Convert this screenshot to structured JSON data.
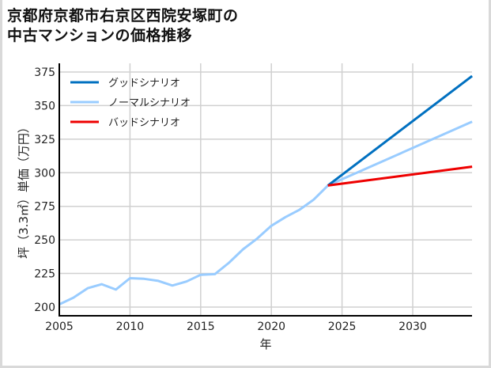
{
  "title_line1": "京都府京都市右京区西院安塚町の",
  "title_line2": "中古マンションの価格推移",
  "chart_data": {
    "type": "line",
    "title": "京都府京都市右京区西院安塚町の中古マンションの価格推移",
    "xlabel": "年",
    "ylabel": "坪（3.3㎡）単価（万円）",
    "xlim": [
      2005,
      2034.2
    ],
    "ylim": [
      197,
      377
    ],
    "xticks": [
      2005,
      2010,
      2015,
      2020,
      2025,
      2030
    ],
    "yticks": [
      200,
      225,
      250,
      275,
      300,
      325,
      350,
      375
    ],
    "grid": true,
    "legend_position": "upper left",
    "series": [
      {
        "name": "グッドシナリオ",
        "color": "#0070c0",
        "x": [
          2024,
          2034.2
        ],
        "values": [
          290.5,
          372
        ]
      },
      {
        "name": "ノーマルシナリオ",
        "color": "#99ccff",
        "x": [
          2005,
          2006,
          2007,
          2008,
          2009,
          2010,
          2011,
          2012,
          2013,
          2014,
          2015,
          2016,
          2017,
          2018,
          2019,
          2020,
          2021,
          2022,
          2023,
          2024,
          2034.2
        ],
        "values": [
          202,
          207,
          214,
          217,
          213,
          221.5,
          221,
          219.5,
          216,
          219,
          224,
          224.5,
          233,
          243,
          251,
          260.5,
          267,
          272.5,
          280,
          290.5,
          338
        ]
      },
      {
        "name": "バッドシナリオ",
        "color": "#ee0000",
        "x": [
          2024,
          2034.2
        ],
        "values": [
          290.5,
          304.5
        ]
      }
    ]
  }
}
